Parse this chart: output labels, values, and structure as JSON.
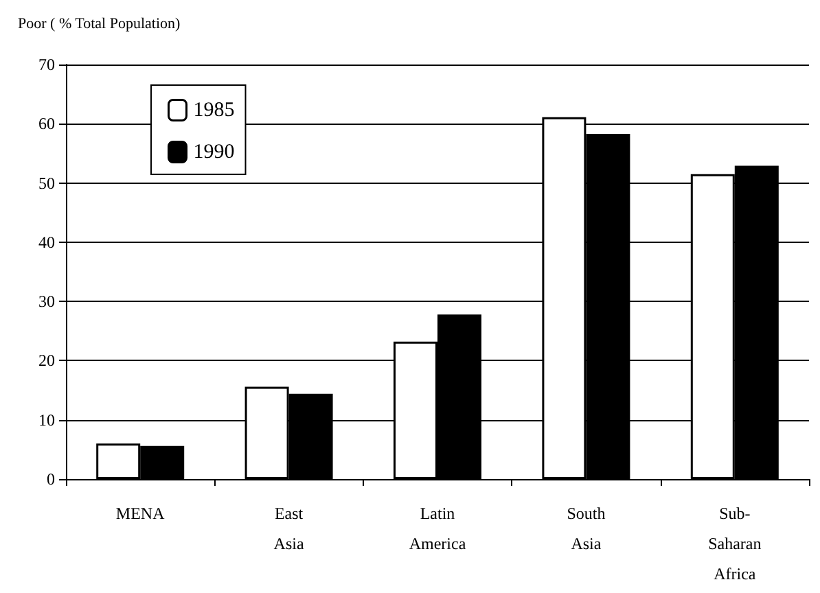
{
  "chart_data": {
    "type": "bar",
    "ylabel": "Poor ( % Total Population)",
    "categories": [
      "MENA",
      "East\nAsia",
      "Latin\nAmerica",
      "South\nAsia",
      "Sub-\nSaharan\nAfrica"
    ],
    "series": [
      {
        "name": "1985",
        "color": "#ffffff",
        "values": [
          6.0,
          15.6,
          23.2,
          61.1,
          51.5
        ]
      },
      {
        "name": "1990",
        "color": "#000000",
        "values": [
          5.6,
          14.4,
          27.8,
          58.3,
          52.9
        ]
      }
    ],
    "ylim": [
      0,
      70
    ],
    "yticks": [
      0,
      10,
      20,
      30,
      40,
      50,
      60,
      70
    ],
    "grid": "y",
    "legend": "top left"
  }
}
